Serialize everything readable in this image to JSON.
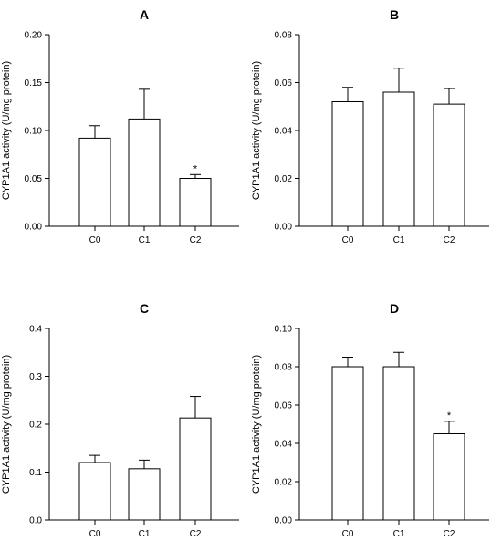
{
  "chart_data": [
    {
      "type": "bar",
      "title": "A",
      "ylabel": "CYP1A1 activity (U/mg protein)",
      "xlabel": "",
      "categories": [
        "C0",
        "C1",
        "C2"
      ],
      "values": [
        0.092,
        0.112,
        0.05
      ],
      "errors": [
        0.013,
        0.031,
        0.004
      ],
      "significance": [
        "",
        "",
        "*"
      ],
      "ylim": [
        0,
        0.2
      ],
      "yticks": [
        0.0,
        0.05,
        0.1,
        0.15,
        0.2
      ],
      "ytick_labels": [
        "0.00",
        "0.05",
        "0.10",
        "0.15",
        "0.20"
      ]
    },
    {
      "type": "bar",
      "title": "B",
      "ylabel": "CYP1A1 activity (U/mg protein)",
      "xlabel": "",
      "categories": [
        "C0",
        "C1",
        "C2"
      ],
      "values": [
        0.052,
        0.056,
        0.051
      ],
      "errors": [
        0.006,
        0.01,
        0.0065
      ],
      "significance": [
        "",
        "",
        ""
      ],
      "ylim": [
        0,
        0.08
      ],
      "yticks": [
        0.0,
        0.02,
        0.04,
        0.06,
        0.08
      ],
      "ytick_labels": [
        "0.00",
        "0.02",
        "0.04",
        "0.06",
        "0.08"
      ]
    },
    {
      "type": "bar",
      "title": "C",
      "ylabel": "CYP1A1 activity (U/mg protein)",
      "xlabel": "",
      "categories": [
        "C0",
        "C1",
        "C2"
      ],
      "values": [
        0.12,
        0.107,
        0.213
      ],
      "errors": [
        0.015,
        0.018,
        0.045
      ],
      "significance": [
        "",
        "",
        ""
      ],
      "ylim": [
        0,
        0.4
      ],
      "yticks": [
        0.0,
        0.1,
        0.2,
        0.3,
        0.4
      ],
      "ytick_labels": [
        "0.0",
        "0.1",
        "0.2",
        "0.3",
        "0.4"
      ]
    },
    {
      "type": "bar",
      "title": "D",
      "ylabel": "CYP1A1 activity (U/mg protein)",
      "xlabel": "",
      "categories": [
        "C0",
        "C1",
        "C2"
      ],
      "values": [
        0.08,
        0.08,
        0.045
      ],
      "errors": [
        0.005,
        0.0075,
        0.0065
      ],
      "significance": [
        "",
        "",
        "*"
      ],
      "ylim": [
        0,
        0.1
      ],
      "yticks": [
        0.0,
        0.02,
        0.04,
        0.06,
        0.08,
        0.1
      ],
      "ytick_labels": [
        "0.00",
        "0.02",
        "0.04",
        "0.06",
        "0.08",
        "0.10"
      ]
    }
  ]
}
